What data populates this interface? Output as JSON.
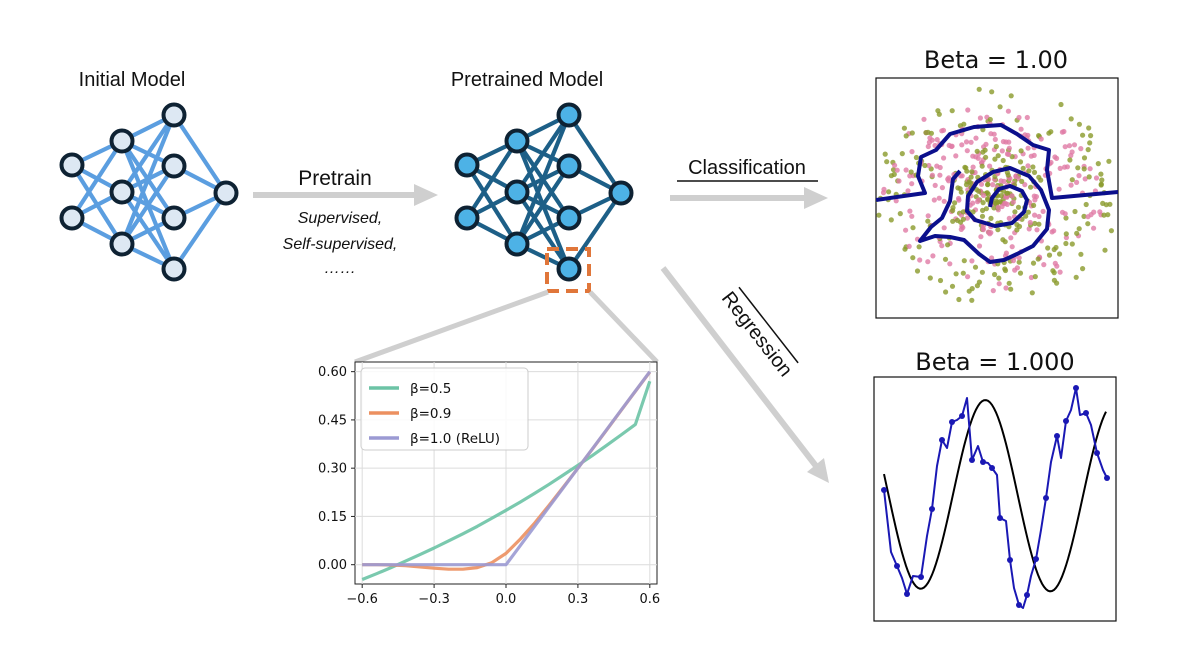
{
  "initial_model": {
    "title": "Initial Model",
    "edge_color": "#5b9ee0",
    "node_fill": "#dde8f3",
    "node_stroke": "#0e2233"
  },
  "pretrain": {
    "label": "Pretrain",
    "methods": [
      "Supervised,",
      "Self-supervised,",
      "……"
    ]
  },
  "pretrained_model": {
    "title": "Pretrained Model",
    "edge_color": "#1d5f87",
    "node_fill": "#4db2e6",
    "node_stroke": "#0e2233",
    "highlight_color": "#e0763a"
  },
  "classification": {
    "label": "Classification",
    "panel_title": "Beta = 1.00",
    "class_colors": [
      "#e07ba5",
      "#8a9a2a"
    ],
    "boundary_color": "#0b0f8c"
  },
  "regression": {
    "label": "Regression",
    "panel_title": "Beta = 1.000",
    "fit_color": "#1a18b4",
    "truth_color": "#000000"
  },
  "chart_data": {
    "type": "line",
    "title": "",
    "xlabel": "",
    "ylabel": "",
    "x_ticks": [
      "−0.6",
      "−0.3",
      "0.0",
      "0.3",
      "0.6"
    ],
    "y_ticks": [
      "0.00",
      "0.15",
      "0.30",
      "0.45",
      "0.60"
    ],
    "xlim": [
      -0.63,
      0.63
    ],
    "ylim": [
      -0.06,
      0.63
    ],
    "grid": true,
    "legend_position": "top-left",
    "x": [
      -0.6,
      -0.54,
      -0.48,
      -0.42,
      -0.36,
      -0.3,
      -0.24,
      -0.18,
      -0.12,
      -0.06,
      0.0,
      0.06,
      0.12,
      0.18,
      0.24,
      0.3,
      0.36,
      0.42,
      0.48,
      0.54,
      0.6
    ],
    "series": [
      {
        "name": "β=0.5",
        "color": "#6cc3a5",
        "values": [
          -0.046,
          -0.028,
          -0.009,
          0.011,
          0.031,
          0.052,
          0.074,
          0.096,
          0.119,
          0.144,
          0.169,
          0.195,
          0.222,
          0.25,
          0.279,
          0.309,
          0.339,
          0.371,
          0.403,
          0.436,
          0.57
        ]
      },
      {
        "name": "β=0.9",
        "color": "#ec9060",
        "values": [
          0.0,
          0.0,
          -0.001,
          -0.003,
          -0.007,
          -0.011,
          -0.014,
          -0.014,
          -0.009,
          0.006,
          0.035,
          0.08,
          0.13,
          0.185,
          0.242,
          0.3,
          0.359,
          0.419,
          0.479,
          0.539,
          0.599
        ]
      },
      {
        "name": "β=1.0 (ReLU)",
        "color": "#9b9ad3",
        "values": [
          0.0,
          0.0,
          0.0,
          0.0,
          0.0,
          0.0,
          0.0,
          0.0,
          0.0,
          0.0,
          0.0,
          0.06,
          0.12,
          0.18,
          0.24,
          0.3,
          0.36,
          0.42,
          0.48,
          0.54,
          0.6
        ]
      }
    ]
  }
}
